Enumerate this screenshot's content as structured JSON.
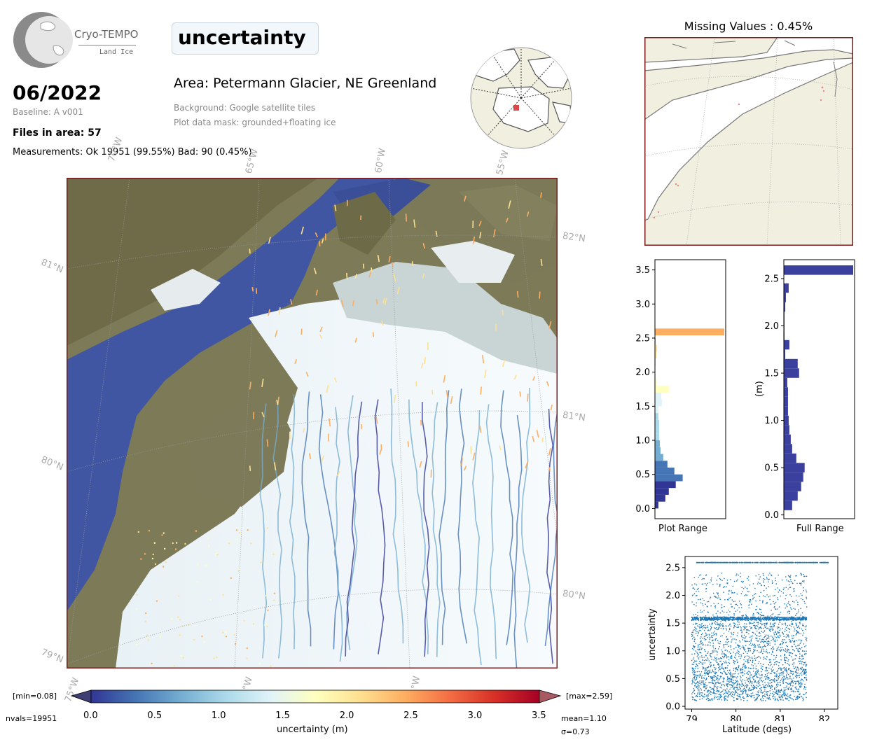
{
  "header": {
    "logo_title": "Cryo-TEMPO",
    "logo_subtitle": "Land Ice",
    "title": "uncertainty",
    "month": "06/2022",
    "baseline": "Baseline: A v001",
    "files": "Files in area: 57",
    "measurements": "Measurements: Ok 19951 (99.55%) Bad: 90 (0.45%)",
    "area": "Area: Petermann Glacier, NE Greenland",
    "background_note": "Background: Google satellite tiles",
    "mask_note": "Plot data mask: grounded+floating ice"
  },
  "missing_title": "Missing Values : 0.45%",
  "map": {
    "lon_labels": [
      "70°W",
      "65°W",
      "60°W",
      "55°W"
    ],
    "lon_labels_bottom": [
      "75°W",
      "70°W",
      "65°W"
    ],
    "lat_labels_left": [
      "81°N",
      "80°N",
      "79°N"
    ],
    "lat_labels_right": [
      "82°N",
      "81°N",
      "80°N"
    ]
  },
  "colorbar": {
    "min_label": "[min=0.08]",
    "max_label": "[max=2.59]",
    "nvals": "nvals=19951",
    "mean": "mean=1.10",
    "sigma": "σ=0.73",
    "label": "uncertainty (m)",
    "ticks": [
      "0.0",
      "0.5",
      "1.0",
      "1.5",
      "2.0",
      "2.5",
      "3.0",
      "3.5"
    ]
  },
  "colors": {
    "low": "#313695",
    "mid": "#ffffbf",
    "high": "#a50026",
    "scatter": "#1f77b4",
    "ice_land": "#f1efdf",
    "map_border": "#7a1a1a"
  },
  "chart_data": [
    {
      "type": "bar",
      "orientation": "horizontal",
      "xlabel": "Plot Range",
      "ylabel": "",
      "ylim": [
        -0.15,
        3.65
      ],
      "yticks": [
        "0.0",
        "0.5",
        "1.0",
        "1.5",
        "2.0",
        "2.5",
        "3.0",
        "3.5"
      ],
      "bins": [
        0.05,
        0.15,
        0.25,
        0.35,
        0.45,
        0.55,
        0.65,
        0.75,
        0.85,
        0.95,
        1.05,
        1.15,
        1.25,
        1.35,
        1.45,
        1.55,
        1.65,
        1.75,
        1.85,
        1.95,
        2.05,
        2.15,
        2.25,
        2.35,
        2.45,
        2.59
      ],
      "values": [
        5,
        15,
        20,
        30,
        40,
        28,
        18,
        12,
        8,
        7,
        6,
        6,
        6,
        5,
        5,
        10,
        9,
        20,
        2,
        1,
        1,
        1,
        2,
        3,
        1,
        100
      ]
    },
    {
      "type": "bar",
      "orientation": "horizontal",
      "xlabel": "Full Range",
      "ylabel": "(m)",
      "ylim": [
        -0.04,
        2.7
      ],
      "yticks": [
        "0.0",
        "0.5",
        "1.0",
        "1.5",
        "2.0",
        "2.5"
      ],
      "bins": [
        0.1,
        0.2,
        0.3,
        0.4,
        0.5,
        0.6,
        0.7,
        0.8,
        0.9,
        1.0,
        1.1,
        1.2,
        1.3,
        1.4,
        1.5,
        1.6,
        1.7,
        1.8,
        1.9,
        2.0,
        2.1,
        2.2,
        2.3,
        2.4,
        2.59
      ],
      "values": [
        12,
        20,
        25,
        28,
        30,
        18,
        12,
        10,
        8,
        7,
        6,
        6,
        6,
        5,
        22,
        20,
        2,
        8,
        1,
        1,
        1,
        2,
        3,
        7,
        100
      ]
    },
    {
      "type": "scatter",
      "xlabel": "Latitude (degs)",
      "ylabel": "uncertainty",
      "xlim": [
        78.85,
        82.3
      ],
      "ylim": [
        -0.05,
        2.7
      ],
      "xticks": [
        "79",
        "80",
        "81",
        "82"
      ],
      "yticks": [
        "0.0",
        "0.5",
        "1.0",
        "1.5",
        "2.0",
        "2.5"
      ]
    }
  ]
}
